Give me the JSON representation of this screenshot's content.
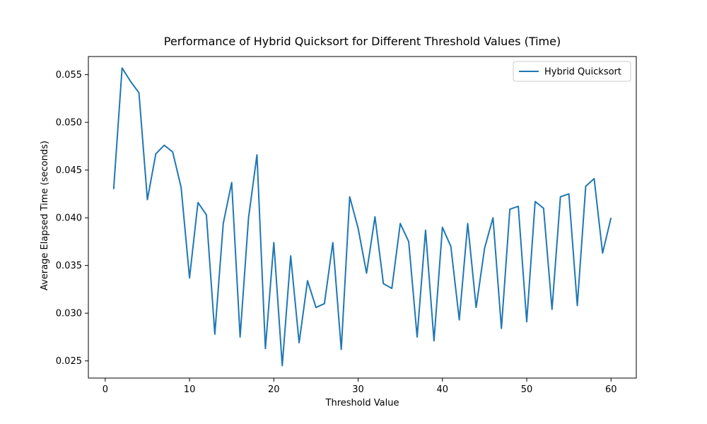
{
  "chart_data": {
    "type": "line",
    "title": "Performance of Hybrid Quicksort for Different Threshold Values (Time)",
    "xlabel": "Threshold Value",
    "ylabel": "Average Elapsed Time (seconds)",
    "xlim": [
      -2,
      63
    ],
    "ylim": [
      0.0232,
      0.0569
    ],
    "xticks": [
      0,
      10,
      20,
      30,
      40,
      50,
      60
    ],
    "xtick_labels": [
      "0",
      "10",
      "20",
      "30",
      "40",
      "50",
      "60"
    ],
    "yticks": [
      0.025,
      0.03,
      0.035,
      0.04,
      0.045,
      0.05,
      0.055
    ],
    "ytick_labels": [
      "0.025",
      "0.030",
      "0.035",
      "0.040",
      "0.045",
      "0.050",
      "0.055"
    ],
    "grid": false,
    "legend_position": "top-right",
    "series": [
      {
        "name": "Hybrid Quicksort",
        "color": "#1f77b4",
        "x": [
          1,
          2,
          3,
          4,
          5,
          6,
          7,
          8,
          9,
          10,
          11,
          12,
          13,
          14,
          15,
          16,
          17,
          18,
          19,
          20,
          21,
          22,
          23,
          24,
          25,
          26,
          27,
          28,
          29,
          30,
          31,
          32,
          33,
          34,
          35,
          36,
          37,
          38,
          39,
          40,
          41,
          42,
          43,
          44,
          45,
          46,
          47,
          48,
          49,
          50,
          51,
          52,
          53,
          54,
          55,
          56,
          57,
          58,
          59,
          60
        ],
        "y": [
          0.043,
          0.0557,
          0.0543,
          0.0531,
          0.0419,
          0.0467,
          0.0476,
          0.0469,
          0.0432,
          0.0337,
          0.0416,
          0.0403,
          0.0278,
          0.0394,
          0.0437,
          0.0275,
          0.04,
          0.0466,
          0.0263,
          0.0374,
          0.0245,
          0.036,
          0.0269,
          0.0334,
          0.0306,
          0.031,
          0.0374,
          0.0262,
          0.0422,
          0.0389,
          0.0342,
          0.0401,
          0.0331,
          0.0326,
          0.0394,
          0.0375,
          0.0275,
          0.0387,
          0.0271,
          0.039,
          0.037,
          0.0293,
          0.0394,
          0.0306,
          0.0368,
          0.04,
          0.0284,
          0.0409,
          0.0412,
          0.0291,
          0.0417,
          0.041,
          0.0304,
          0.0422,
          0.0425,
          0.0308,
          0.0433,
          0.0441,
          0.0363,
          0.04
        ]
      }
    ]
  }
}
